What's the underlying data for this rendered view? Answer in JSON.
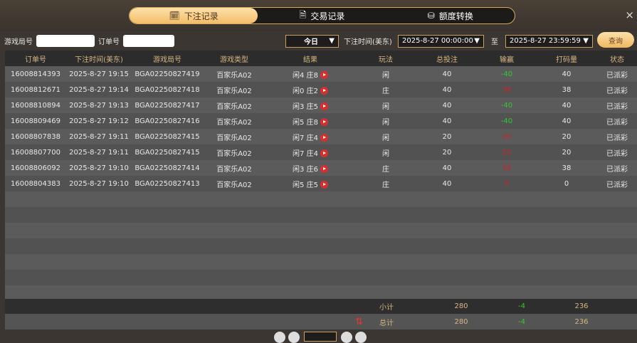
{
  "tabs": [
    {
      "label": "下注记录",
      "icon": "calendar-icon",
      "active": true
    },
    {
      "label": "交易记录",
      "icon": "document-icon"
    },
    {
      "label": "额度转换",
      "icon": "coins-icon"
    }
  ],
  "close": "×",
  "filters": {
    "game_round_label": "游戏局号",
    "game_round_value": "",
    "order_label": "订单号",
    "order_value": "",
    "period": "今日",
    "time_label": "下注时间(美东)",
    "start": "2025-8-27 00:00:00",
    "to": "至",
    "end": "2025-8-27 23:59:59",
    "query": "查询"
  },
  "columns": [
    "订单号",
    "下注时间(美东)",
    "游戏局号",
    "游戏类型",
    "结果",
    "玩法",
    "总投注",
    "输赢",
    "打码量",
    "状态"
  ],
  "rows": [
    [
      "16008814393",
      "2025-8-27 19:15",
      "BGA02250827419",
      "百家乐A02",
      "闲4 庄8",
      "闲",
      "40",
      "-40",
      "40",
      "已派彩"
    ],
    [
      "16008812671",
      "2025-8-27 19:14",
      "BGA02250827418",
      "百家乐A02",
      "闲0 庄2",
      "庄",
      "40",
      "38",
      "38",
      "已派彩"
    ],
    [
      "16008810894",
      "2025-8-27 19:13",
      "BGA02250827417",
      "百家乐A02",
      "闲3 庄5",
      "闲",
      "40",
      "-40",
      "40",
      "已派彩"
    ],
    [
      "16008809469",
      "2025-8-27 19:12",
      "BGA02250827416",
      "百家乐A02",
      "闲5 庄8",
      "闲",
      "40",
      "-40",
      "40",
      "已派彩"
    ],
    [
      "16008807838",
      "2025-8-27 19:11",
      "BGA02250827415",
      "百家乐A02",
      "闲7 庄4",
      "闲",
      "20",
      "20",
      "20",
      "已派彩"
    ],
    [
      "16008807700",
      "2025-8-27 19:11",
      "BGA02250827415",
      "百家乐A02",
      "闲7 庄4",
      "闲",
      "20",
      "20",
      "20",
      "已派彩"
    ],
    [
      "16008806092",
      "2025-8-27 19:10",
      "BGA02250827414",
      "百家乐A02",
      "闲3 庄6",
      "庄",
      "40",
      "38",
      "38",
      "已派彩"
    ],
    [
      "16008804383",
      "2025-8-27 19:10",
      "BGA02250827413",
      "百家乐A02",
      "闲5 庄5",
      "庄",
      "40",
      "0",
      "0",
      "已派彩"
    ]
  ],
  "subtotal": {
    "label": "小计",
    "bet": "280",
    "win": "-4",
    "turnover": "236"
  },
  "total": {
    "label": "总计",
    "bet": "280",
    "win": "-4",
    "turnover": "236"
  },
  "colors": {
    "accent": "#f3bd68",
    "win": "#c8262a",
    "loss": "#2ecb2e"
  }
}
